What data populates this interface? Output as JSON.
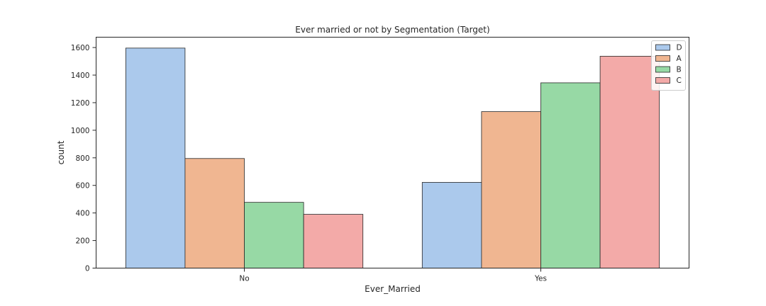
{
  "chart_data": {
    "type": "bar",
    "title": "Ever married or not by Segmentation (Target)",
    "xlabel": "Ever_Married",
    "ylabel": "count",
    "categories": [
      "No",
      "Yes"
    ],
    "series": [
      {
        "name": "D",
        "values": [
          1596,
          622
        ],
        "color": "#abc9ec"
      },
      {
        "name": "A",
        "values": [
          795,
          1135
        ],
        "color": "#f0b691"
      },
      {
        "name": "B",
        "values": [
          477,
          1344
        ],
        "color": "#97d9a5"
      },
      {
        "name": "C",
        "values": [
          390,
          1537
        ],
        "color": "#f3aaa8"
      }
    ],
    "ylim": [
      0,
      1675
    ],
    "yticks": [
      0,
      200,
      400,
      600,
      800,
      1000,
      1200,
      1400,
      1600
    ],
    "grid": false,
    "legend_position": "top-right"
  }
}
